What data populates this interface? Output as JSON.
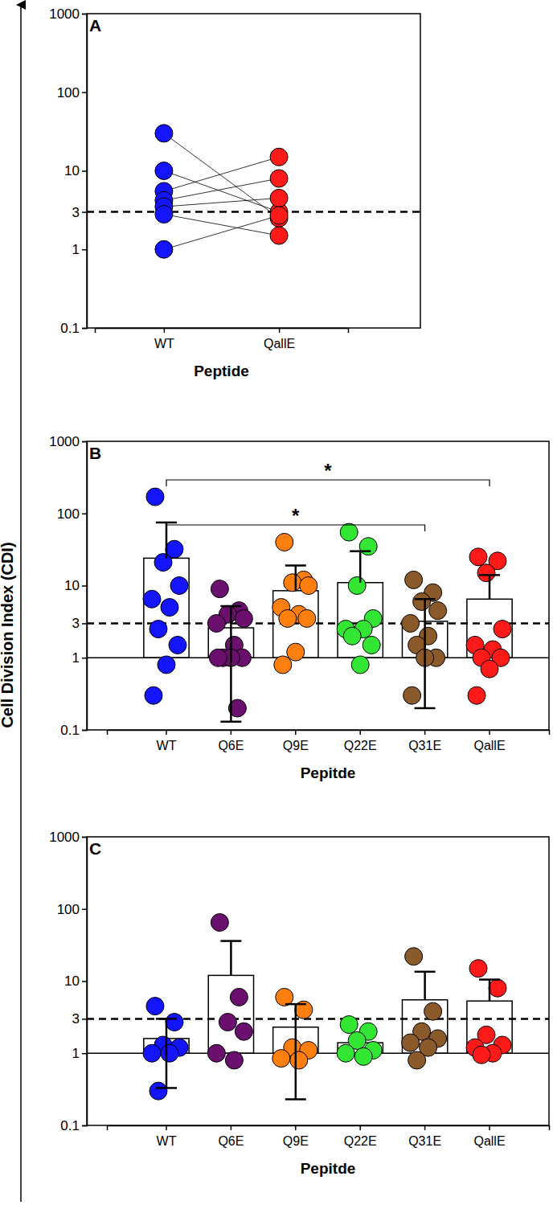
{
  "chart_data": [
    {
      "type": "scatter",
      "title": "A",
      "y_label": "Cell Division Index (CDI)",
      "x_label": "Peptide",
      "categories": [
        "WT",
        "QallE"
      ],
      "colors": [
        "#1414ff",
        "#ff1a1a"
      ],
      "points": [
        [
          30,
          10,
          5.5,
          4.2,
          3.5,
          2.8,
          1
        ],
        [
          2.5,
          3,
          15,
          8,
          4.5,
          1.5,
          2.7
        ]
      ],
      "line_style": "solid",
      "log": "y",
      "reference_lines": [
        {
          "value": 3,
          "line_style": "dashed"
        }
      ],
      "ylim": [
        0.1,
        1000
      ],
      "yticks": [
        0.1,
        1,
        3,
        10,
        100,
        1000
      ]
    },
    {
      "type": "bar",
      "title": "B",
      "x_label": "Pepitde",
      "categories": [
        "WT",
        "Q6E",
        "Q9E",
        "Q22E",
        "Q31E",
        "QallE"
      ],
      "color": "#ffffff",
      "colors": [
        "#1414ff",
        "#6a0f6e",
        "#ff7f0e",
        "#33e633",
        "#8b5a2b",
        "#ff1a1a"
      ],
      "values": [
        24,
        2.6,
        8.5,
        11,
        3.2,
        6.5
      ],
      "error_high": [
        75,
        5.2,
        19,
        30,
        6.5,
        14
      ],
      "error_low": [
        null,
        0.13,
        null,
        null,
        0.2,
        null
      ],
      "points": [
        [
          170,
          32,
          21,
          10,
          6.5,
          5,
          2.5,
          1.5,
          0.8,
          0.3
        ],
        [
          9,
          4.5,
          4,
          3.5,
          3,
          1.5,
          1,
          1,
          1,
          1,
          0.2
        ],
        [
          40,
          12,
          11,
          10,
          5,
          4,
          3.5,
          3.5,
          1.2,
          0.8
        ],
        [
          55,
          35,
          10,
          3.5,
          2.5,
          2.5,
          2,
          1.5,
          0.8
        ],
        [
          12,
          8,
          6,
          4.5,
          3,
          2,
          1.5,
          1,
          1,
          0.3
        ],
        [
          25,
          22,
          15,
          2.5,
          1.5,
          1.3,
          1,
          1,
          0.7,
          0.3
        ]
      ],
      "base": 1,
      "log": "y",
      "reference_lines": [
        {
          "value": 3,
          "line_style": "dashed"
        }
      ],
      "annotations": [
        {
          "text": "*",
          "from": "WT",
          "to": "QallE"
        },
        {
          "text": "*",
          "from": "WT",
          "to": "Q31E"
        }
      ],
      "ylim": [
        0.1,
        1000
      ],
      "yticks": [
        0.1,
        1,
        3,
        10,
        100,
        1000
      ]
    },
    {
      "type": "bar",
      "title": "C",
      "x_label": "Pepitde",
      "categories": [
        "WT",
        "Q6E",
        "Q9E",
        "Q22E",
        "Q31E",
        "QallE"
      ],
      "color": "#ffffff",
      "colors": [
        "#1414ff",
        "#6a0f6e",
        "#ff7f0e",
        "#33e633",
        "#8b5a2b",
        "#ff1a1a"
      ],
      "values": [
        1.6,
        12,
        2.3,
        1.4,
        5.5,
        5.3
      ],
      "error_high": [
        3,
        36,
        4.8,
        null,
        13.5,
        10.5
      ],
      "error_low": [
        0.33,
        null,
        0.23,
        null,
        null,
        null
      ],
      "points": [
        [
          4.5,
          2.7,
          1.3,
          1.2,
          1,
          1,
          0.3
        ],
        [
          65,
          6,
          2.7,
          2,
          1,
          0.8
        ],
        [
          6,
          4,
          1.2,
          1.1,
          0.85,
          0.8
        ],
        [
          2.5,
          2,
          1.5,
          1.1,
          1,
          0.9
        ],
        [
          22,
          3.8,
          2,
          1.6,
          1.4,
          1.2,
          0.8
        ],
        [
          15,
          8,
          1.8,
          1.3,
          1.2,
          1,
          0.95
        ]
      ],
      "base": 1,
      "log": "y",
      "reference_lines": [
        {
          "value": 3,
          "line_style": "dashed"
        }
      ],
      "ylim": [
        0.1,
        1000
      ],
      "yticks": [
        0.1,
        1,
        3,
        10,
        100,
        1000
      ]
    }
  ]
}
